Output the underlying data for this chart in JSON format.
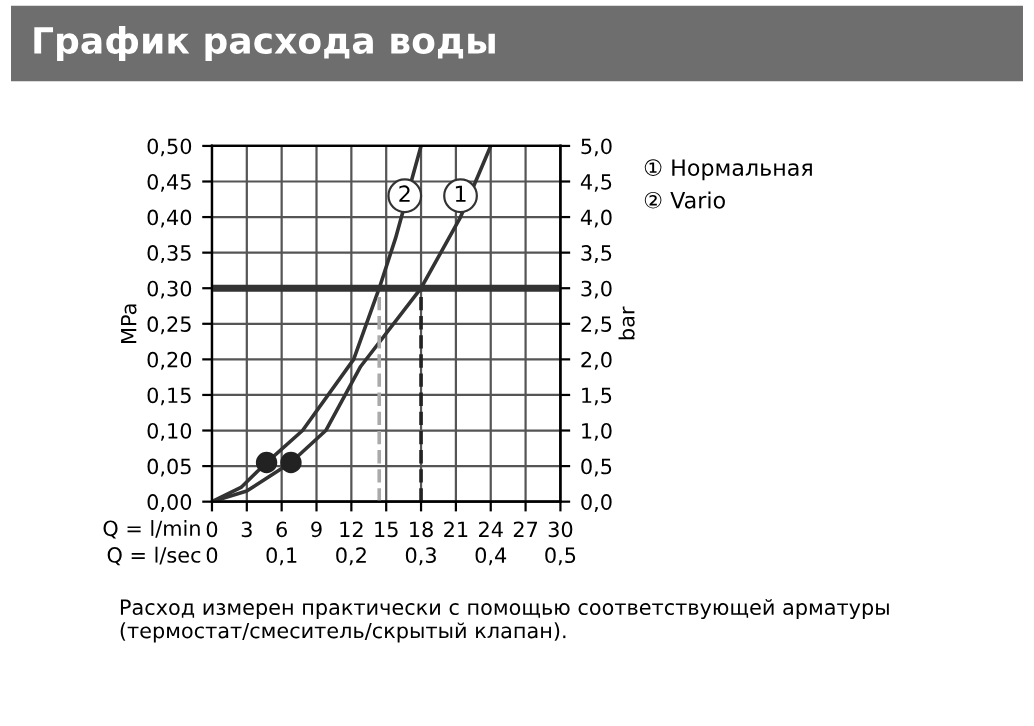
{
  "chart_data": {
    "type": "line",
    "title": "График расхода воды",
    "xlabel": "Q = l/min",
    "x2label": "Q = l/sec",
    "ylabel": "MPa",
    "y2label": "bar",
    "xlim": [
      0,
      30
    ],
    "xticks": [
      0,
      3,
      6,
      9,
      12,
      15,
      18,
      21,
      24,
      27,
      30
    ],
    "x2lim": [
      0,
      0.5
    ],
    "x2ticks": [
      {
        "value": 0,
        "label": "0"
      },
      {
        "value": 0.1,
        "label": "0,1"
      },
      {
        "value": 0.2,
        "label": "0,2"
      },
      {
        "value": 0.3,
        "label": "0,3"
      },
      {
        "value": 0.4,
        "label": "0,4"
      },
      {
        "value": 0.5,
        "label": "0,5"
      }
    ],
    "ylim": [
      0,
      0.5
    ],
    "yticks": [
      {
        "value": 0,
        "label": "0,00"
      },
      {
        "value": 0.05,
        "label": "0,05"
      },
      {
        "value": 0.1,
        "label": "0,10"
      },
      {
        "value": 0.15,
        "label": "0,15"
      },
      {
        "value": 0.2,
        "label": "0,20"
      },
      {
        "value": 0.25,
        "label": "0,25"
      },
      {
        "value": 0.3,
        "label": "0,30"
      },
      {
        "value": 0.35,
        "label": "0,35"
      },
      {
        "value": 0.4,
        "label": "0,40"
      },
      {
        "value": 0.45,
        "label": "0,45"
      },
      {
        "value": 0.5,
        "label": "0,50"
      }
    ],
    "y2lim": [
      0,
      5
    ],
    "y2ticks": [
      {
        "value": 0,
        "label": "0,0"
      },
      {
        "value": 0.5,
        "label": "0,5"
      },
      {
        "value": 1,
        "label": "1,0"
      },
      {
        "value": 1.5,
        "label": "1,5"
      },
      {
        "value": 2,
        "label": "2,0"
      },
      {
        "value": 2.5,
        "label": "2,5"
      },
      {
        "value": 3,
        "label": "3,0"
      },
      {
        "value": 3.5,
        "label": "3,5"
      },
      {
        "value": 4,
        "label": "4,0"
      },
      {
        "value": 4.5,
        "label": "4,5"
      },
      {
        "value": 5,
        "label": "5,0"
      }
    ],
    "grid": true,
    "legend": "right",
    "series": [
      {
        "name": "① Нормальная",
        "color": "#333333",
        "x": [
          0,
          3,
          6.8,
          9.8,
          12.8,
          18,
          21.4,
          24
        ],
        "values": [
          0,
          0.015,
          0.055,
          0.1,
          0.19,
          0.3,
          0.4,
          0.5
        ]
      },
      {
        "name": "② Vario",
        "color": "#333333",
        "x": [
          0,
          2.5,
          4.7,
          7.8,
          12.2,
          14.4,
          15.8,
          18
        ],
        "values": [
          0,
          0.02,
          0.055,
          0.1,
          0.2,
          0.3,
          0.37,
          0.5
        ]
      },
      {
        "type": "scatter",
        "color": "#222222",
        "marker": "circle",
        "x": [
          4.7,
          6.8
        ],
        "values": [
          0.055,
          0.055
        ]
      },
      {
        "color": "#aaaaaa",
        "line_style": "dashed",
        "x": [
          14.4,
          14.4
        ],
        "values": [
          0,
          0.3
        ]
      },
      {
        "color": "#222222",
        "line_style": "dashed",
        "x": [
          18,
          18
        ],
        "values": [
          0,
          0.3
        ]
      }
    ],
    "ref_lines": [
      {
        "axis": "y",
        "value": 0.3,
        "color": "#333333"
      }
    ],
    "annotations": [
      {
        "text": "1",
        "x": 21.4,
        "y": 0.43
      },
      {
        "text": "2",
        "x": 16.6,
        "y": 0.43
      },
      "Расход измерен практически с помощью соответствующей арматуры (термостат/смеситель/скрытый клапан)."
    ]
  }
}
